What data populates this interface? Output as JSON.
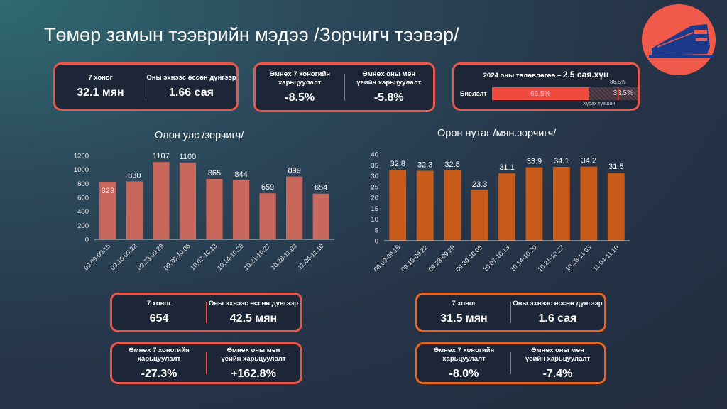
{
  "title": "Төмөр замын тээврийн мэдээ /Зорчигч тээвэр/",
  "logo": {
    "icon": "train-icon",
    "color": "#f15a4a"
  },
  "summary": {
    "week_label": "7 хоног",
    "week_value": "32.1 мян",
    "ytd_label": "Оны эхнээс өссөн дүнгээр",
    "ytd_value": "1.66 сая",
    "prev_week_label": "Өмнөх 7 хоногийн харьцуулалт",
    "prev_week_value": "-8.5%",
    "prev_year_label": "Өмнөх оны мөн үеийн харьцуулалт",
    "prev_year_value": "-5.8%"
  },
  "plan": {
    "title": "2024 оны төлөвлөгөө – ",
    "title_big": "2.5 сая.хүн",
    "row_label": "Биелэлт",
    "done": 66.5,
    "done_label": "66.5%",
    "remaining_label": "33.5%",
    "target": 86.5,
    "target_label": "86.5%",
    "target_caption": "Хүрах түвшин"
  },
  "chart_data": [
    {
      "type": "bar",
      "title": "Олон улс /зорчигч/",
      "categories": [
        "09.09-09.15",
        "09.16-09.22",
        "09.23-09.29",
        "09.30-10.06",
        "10.07-10.13",
        "10.14-10.20",
        "10.21-10.27",
        "10.28-11.03",
        "11.04-11.10"
      ],
      "values": [
        823,
        830,
        1107,
        1100,
        865,
        844,
        659,
        899,
        654
      ],
      "ylim": [
        0,
        1200
      ],
      "yticks": [
        0,
        200,
        400,
        600,
        800,
        1000,
        1200
      ],
      "color": "#c8675c"
    },
    {
      "type": "bar",
      "title": "Орон нутаг /мян.зорчигч/",
      "categories": [
        "09.09-09.15",
        "09.16-09.22",
        "09.23-09.29",
        "09.30-10.06",
        "10.07-10.13",
        "10.14-10.20",
        "10.21-10.27",
        "10.28-11.03",
        "11.04-11.10"
      ],
      "values": [
        32.8,
        32.3,
        32.5,
        23.3,
        31.1,
        33.9,
        34.1,
        34.2,
        31.5
      ],
      "ylim": [
        0,
        40
      ],
      "yticks": [
        0,
        5,
        10,
        15,
        20,
        25,
        30,
        35,
        40
      ],
      "color": "#c85a1a"
    }
  ],
  "intl": {
    "week_label": "7 хоног",
    "week_value": "654",
    "ytd_label": "Оны эхнээс өссөн дүнгээр",
    "ytd_value": "42.5 мян",
    "prev_week_label": "Өмнөх 7 хоногийн харьцуулалт",
    "prev_week_value": "-27.3%",
    "prev_year_label": "Өмнөх оны мөн үеийн харьцуулалт",
    "prev_year_value": "+162.8%"
  },
  "domestic": {
    "week_label": "7 хоног",
    "week_value": "31.5 мян",
    "ytd_label": "Оны эхнээс өссөн дүнгээр",
    "ytd_value": "1.6 сая",
    "prev_week_label": "Өмнөх 7 хоногийн харьцуулалт",
    "prev_week_value": "-8.0%",
    "prev_year_label": "Өмнөх оны мөн үеийн харьцуулалт",
    "prev_year_value": "-7.4%"
  }
}
